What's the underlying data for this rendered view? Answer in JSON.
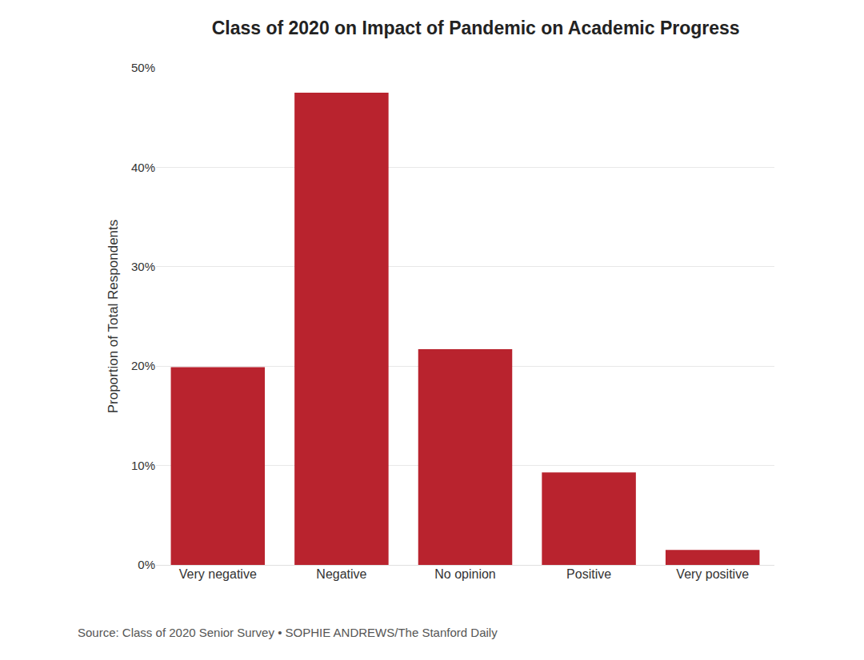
{
  "chart_data": {
    "type": "bar",
    "title": "Class of 2020 on Impact of Pandemic on Academic Progress",
    "ylabel": "Proportion of Total Respondents",
    "caption": "Source: Class of 2020 Senior Survey • SOPHIE ANDREWS/The Stanford Daily",
    "categories": [
      "Very negative",
      "Negative",
      "No opinion",
      "Positive",
      "Very positive"
    ],
    "values": [
      19.9,
      47.5,
      21.7,
      9.3,
      1.5
    ],
    "color": "#b71c27",
    "ylim": [
      0,
      50
    ],
    "yticks": [
      {
        "value": 0,
        "label": "0%"
      },
      {
        "value": 10,
        "label": "10%"
      },
      {
        "value": 20,
        "label": "20%"
      },
      {
        "value": 30,
        "label": "30%"
      },
      {
        "value": 40,
        "label": "40%"
      },
      {
        "value": 50,
        "label": "50%"
      }
    ],
    "grid": true
  }
}
